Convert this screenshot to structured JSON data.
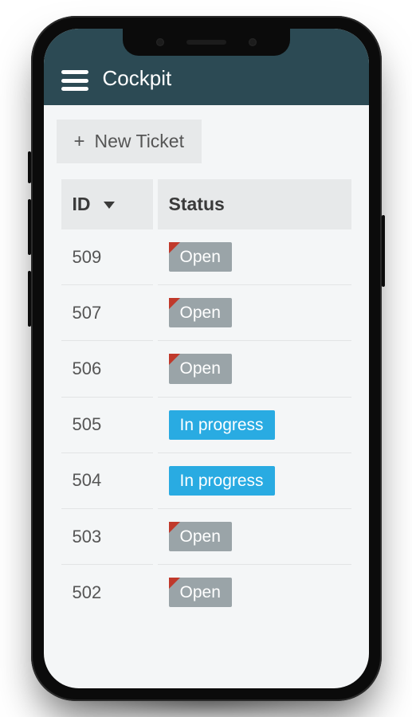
{
  "colors": {
    "header_bg": "#2c4a54",
    "screen_bg": "#f4f6f7",
    "panel_bg": "#e7e9ea",
    "text_dark": "#3a3a3a",
    "text_muted": "#555555",
    "row_divider": "#e2e4e5",
    "badge_open_bg": "#9aa4a8",
    "badge_open_corner": "#c0392b",
    "badge_progress_bg": "#29abe2",
    "white": "#ffffff"
  },
  "header": {
    "title": "Cockpit"
  },
  "toolbar": {
    "new_ticket_label": "New Ticket",
    "plus_glyph": "+"
  },
  "table": {
    "columns": {
      "id_label": "ID",
      "status_label": "Status"
    },
    "rows": [
      {
        "id": "509",
        "status_label": "Open",
        "status_kind": "open"
      },
      {
        "id": "507",
        "status_label": "Open",
        "status_kind": "open"
      },
      {
        "id": "506",
        "status_label": "Open",
        "status_kind": "open"
      },
      {
        "id": "505",
        "status_label": "In progress",
        "status_kind": "progress"
      },
      {
        "id": "504",
        "status_label": "In progress",
        "status_kind": "progress"
      },
      {
        "id": "503",
        "status_label": "Open",
        "status_kind": "open"
      },
      {
        "id": "502",
        "status_label": "Open",
        "status_kind": "open"
      }
    ]
  }
}
